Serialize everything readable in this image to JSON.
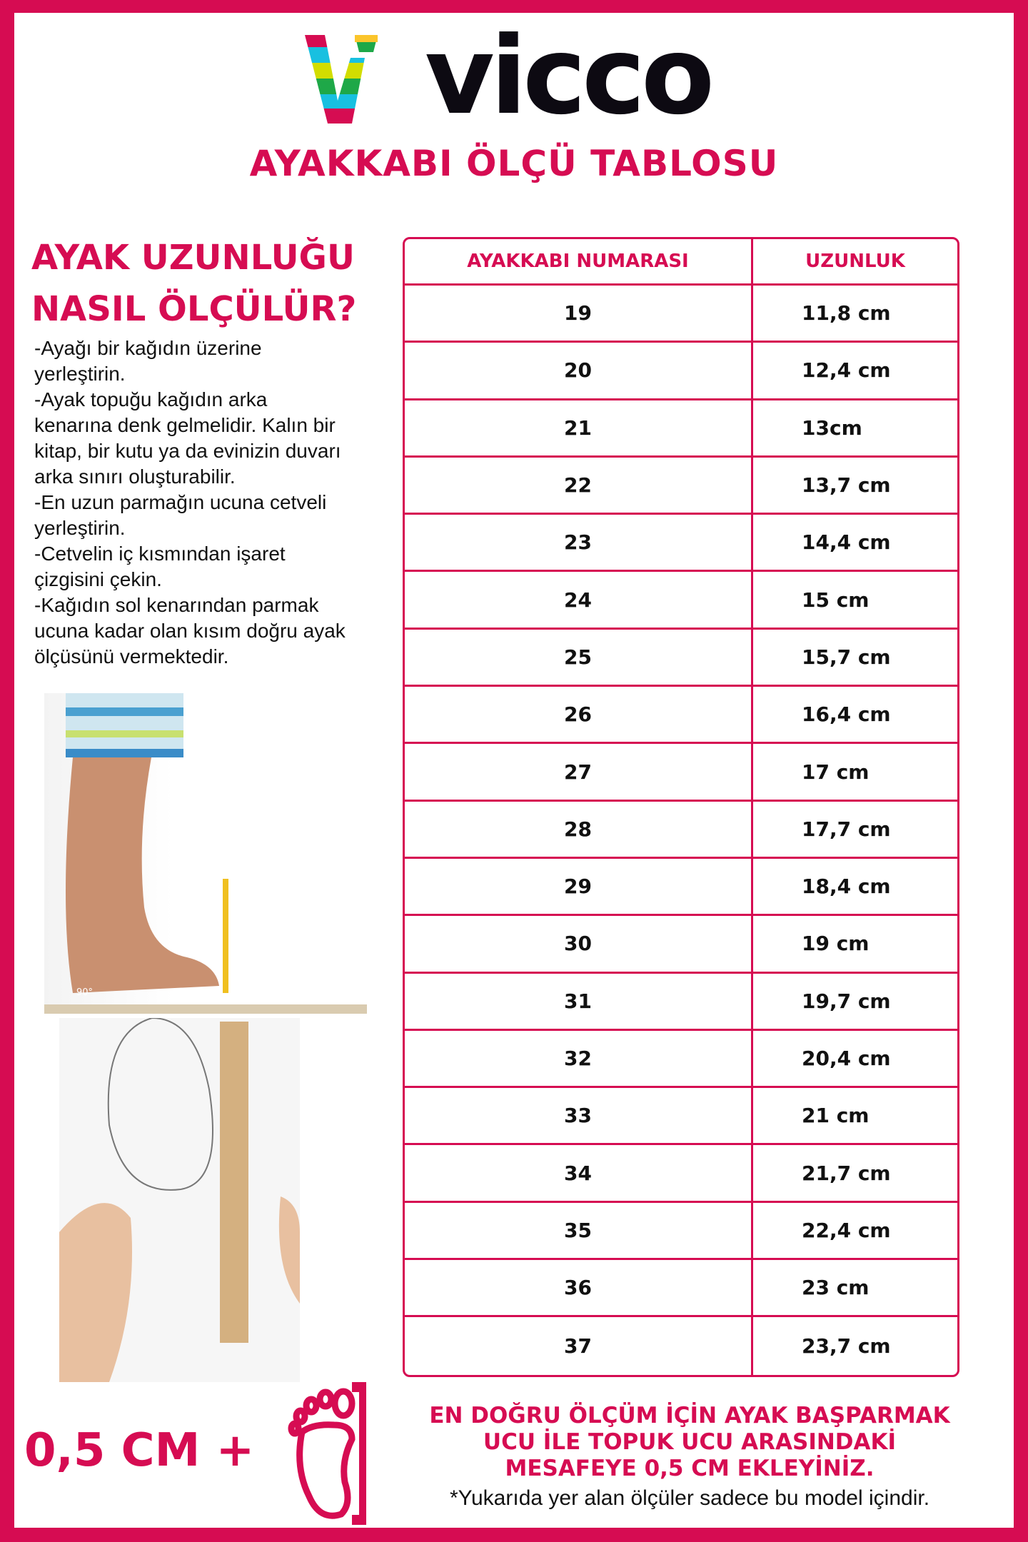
{
  "brand": {
    "name": "vicco"
  },
  "title": "AYAKKABI ÖLÇÜ TABLOSU",
  "howto": {
    "heading_line1": "AYAK UZUNLUĞU",
    "heading_line2": "NASIL ÖLÇÜLÜR?",
    "steps": [
      "-Ayağı bir kağıdın üzerine\nyerleştirin.",
      "-Ayak topuğu kağıdın arka\nkenarına denk gelmelidir. Kalın bir\nkitap, bir kutu ya da evinizin duvarı\narka sınırı oluşturabilir.",
      "-En uzun parmağın ucuna cetveli\nyerleştirin.",
      "-Cetvelin iç kısmından işaret\nçizgisini çekin.",
      "-Kağıdın sol kenarından parmak\nucuna kadar olan kısım doğru ayak\nölçüsünü vermektedir."
    ],
    "angle_label": "90°"
  },
  "table": {
    "headers": [
      "AYAKKABI NUMARASI",
      "UZUNLUK"
    ],
    "rows": [
      [
        "19",
        "11,8 cm"
      ],
      [
        "20",
        "12,4 cm"
      ],
      [
        "21",
        "13cm"
      ],
      [
        "22",
        "13,7 cm"
      ],
      [
        "23",
        "14,4 cm"
      ],
      [
        "24",
        "15 cm"
      ],
      [
        "25",
        "15,7 cm"
      ],
      [
        "26",
        "16,4 cm"
      ],
      [
        "27",
        "17 cm"
      ],
      [
        "28",
        "17,7 cm"
      ],
      [
        "29",
        "18,4 cm"
      ],
      [
        "30",
        "19 cm"
      ],
      [
        "31",
        "19,7 cm"
      ],
      [
        "32",
        "20,4 cm"
      ],
      [
        "33",
        "21 cm"
      ],
      [
        "34",
        "21,7 cm"
      ],
      [
        "35",
        "22,4 cm"
      ],
      [
        "36",
        "23 cm"
      ],
      [
        "37",
        "23,7 cm"
      ]
    ]
  },
  "bottom": {
    "extra": "0,5 CM +",
    "note": "EN DOĞRU ÖLÇÜM İÇİN AYAK BAŞPARMAK UCU İLE TOPUK UCU ARASINDAKİ MESAFEYE 0,5 CM EKLEYİNİZ.",
    "footnote": "*Yukarıda yer alan ölçüler sadece bu model içindir."
  },
  "colors": {
    "accent": "#d60c52",
    "text": "#111111"
  }
}
